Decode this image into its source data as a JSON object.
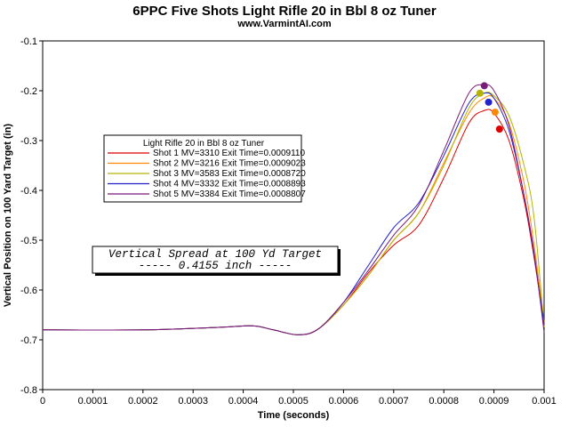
{
  "chart_data": {
    "type": "line",
    "title": "6PPC Five Shots Light Rifle 20 in Bbl 8 oz Tuner",
    "subtitle": "www.VarmintAI.com",
    "xlabel": "Time (seconds)",
    "ylabel": "Vertical Position on 100 Yard Target (in)",
    "xlim": [
      0,
      0.001
    ],
    "ylim": [
      -0.8,
      -0.1
    ],
    "x_ticks": [
      "0",
      "0.0001",
      "0.0002",
      "0.0003",
      "0.0004",
      "0.0005",
      "0.0006",
      "0.0007",
      "0.0008",
      "0.0009",
      "0.001"
    ],
    "y_ticks": [
      "-0.1",
      "-0.2",
      "-0.3",
      "-0.4",
      "-0.5",
      "-0.6",
      "-0.7",
      "-0.8"
    ],
    "grid": false,
    "legend": {
      "title": "Light Rifle 20 in Bbl  8 oz Tuner",
      "position": "upper-left"
    },
    "series": [
      {
        "name": "Shot 1 MV=3310 Exit Time=0.0009110",
        "color": "#dd0000",
        "x": [
          0,
          0.0002,
          0.00035,
          0.00042,
          0.00046,
          0.00051,
          0.00055,
          0.0006,
          0.00065,
          0.0007,
          0.00075,
          0.0008,
          0.00085,
          0.00088,
          0.0009,
          0.00093,
          0.00096,
          0.00098,
          0.001
        ],
        "y": [
          -0.68,
          -0.68,
          -0.675,
          -0.672,
          -0.68,
          -0.69,
          -0.678,
          -0.63,
          -0.565,
          -0.51,
          -0.47,
          -0.375,
          -0.265,
          -0.24,
          -0.245,
          -0.3,
          -0.42,
          -0.535,
          -0.67
        ],
        "end_marker": [
          0.000911,
          -0.277
        ]
      },
      {
        "name": "Shot 2 MV=3216 Exit Time=0.0009023",
        "color": "#ff8800",
        "x": [
          0,
          0.0002,
          0.00035,
          0.00042,
          0.00046,
          0.00051,
          0.00055,
          0.0006,
          0.00065,
          0.0007,
          0.00075,
          0.0008,
          0.00085,
          0.00088,
          0.0009,
          0.00093,
          0.00096,
          0.00098,
          0.001
        ],
        "y": [
          -0.68,
          -0.68,
          -0.675,
          -0.672,
          -0.68,
          -0.69,
          -0.678,
          -0.63,
          -0.57,
          -0.5,
          -0.445,
          -0.345,
          -0.245,
          -0.215,
          -0.215,
          -0.265,
          -0.385,
          -0.51,
          -0.665
        ],
        "end_marker": [
          0.0009023,
          -0.243
        ]
      },
      {
        "name": "Shot 3 MV=3583 Exit Time=0.0008720",
        "color": "#b3b300",
        "x": [
          0,
          0.0002,
          0.00035,
          0.00042,
          0.00046,
          0.00051,
          0.00055,
          0.0006,
          0.00065,
          0.0007,
          0.00075,
          0.0008,
          0.00085,
          0.00088,
          0.0009,
          0.00093,
          0.00096,
          0.00098,
          0.001
        ],
        "y": [
          -0.68,
          -0.68,
          -0.675,
          -0.672,
          -0.68,
          -0.69,
          -0.678,
          -0.63,
          -0.57,
          -0.5,
          -0.445,
          -0.35,
          -0.235,
          -0.205,
          -0.21,
          -0.25,
          -0.35,
          -0.455,
          -0.675
        ],
        "end_marker": [
          0.000872,
          -0.205
        ]
      },
      {
        "name": "Shot 4 MV=3332 Exit Time=0.0008893",
        "color": "#2222cc",
        "x": [
          0,
          0.0002,
          0.00035,
          0.00042,
          0.00046,
          0.00051,
          0.00055,
          0.0006,
          0.00065,
          0.0007,
          0.00075,
          0.0008,
          0.00085,
          0.00088,
          0.0009,
          0.00093,
          0.00096,
          0.00098,
          0.001
        ],
        "y": [
          -0.68,
          -0.68,
          -0.675,
          -0.672,
          -0.68,
          -0.69,
          -0.678,
          -0.625,
          -0.55,
          -0.475,
          -0.425,
          -0.33,
          -0.225,
          -0.205,
          -0.215,
          -0.28,
          -0.41,
          -0.53,
          -0.67
        ],
        "end_marker": [
          0.0008893,
          -0.223
        ]
      },
      {
        "name": "Shot 5 MV=3384 Exit Time=0.0008807",
        "color": "#7a1a7a",
        "x": [
          0,
          0.0002,
          0.00035,
          0.00042,
          0.00046,
          0.00051,
          0.00055,
          0.0006,
          0.00065,
          0.0007,
          0.00075,
          0.0008,
          0.00085,
          0.00088,
          0.0009,
          0.00093,
          0.00096,
          0.00098,
          0.001
        ],
        "y": [
          -0.68,
          -0.68,
          -0.675,
          -0.672,
          -0.68,
          -0.69,
          -0.678,
          -0.625,
          -0.56,
          -0.49,
          -0.43,
          -0.32,
          -0.205,
          -0.188,
          -0.2,
          -0.27,
          -0.41,
          -0.525,
          -0.685
        ],
        "end_marker": [
          0.0008807,
          -0.19
        ]
      }
    ],
    "annotation": {
      "line1": "Vertical Spread at 100 Yd Target",
      "line2": "----- 0.4155 inch -----"
    }
  }
}
